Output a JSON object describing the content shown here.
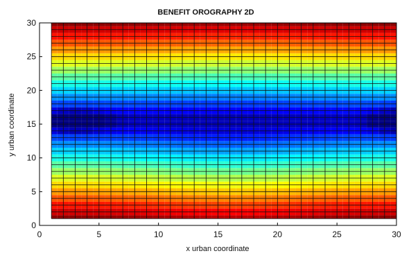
{
  "chart_data": {
    "type": "heatmap",
    "title": "BENEFIT OROGRAPHY 2D",
    "xlabel": "x urban coordinate",
    "ylabel": "y urban coordinate",
    "xlim": [
      0,
      30
    ],
    "ylim": [
      0,
      30
    ],
    "x_ticks": [
      0,
      5,
      10,
      15,
      20,
      25,
      30
    ],
    "y_ticks": [
      0,
      5,
      10,
      15,
      20,
      25,
      30
    ],
    "grid_x": [
      1,
      30
    ],
    "grid_y": [
      1,
      30
    ],
    "colormap": "jet",
    "grid_lines": true,
    "description_of_values": "low values along the band y = 15 with deepest minima near x = 3 and x = 30, rising toward the top and bottom edges (red)"
  }
}
